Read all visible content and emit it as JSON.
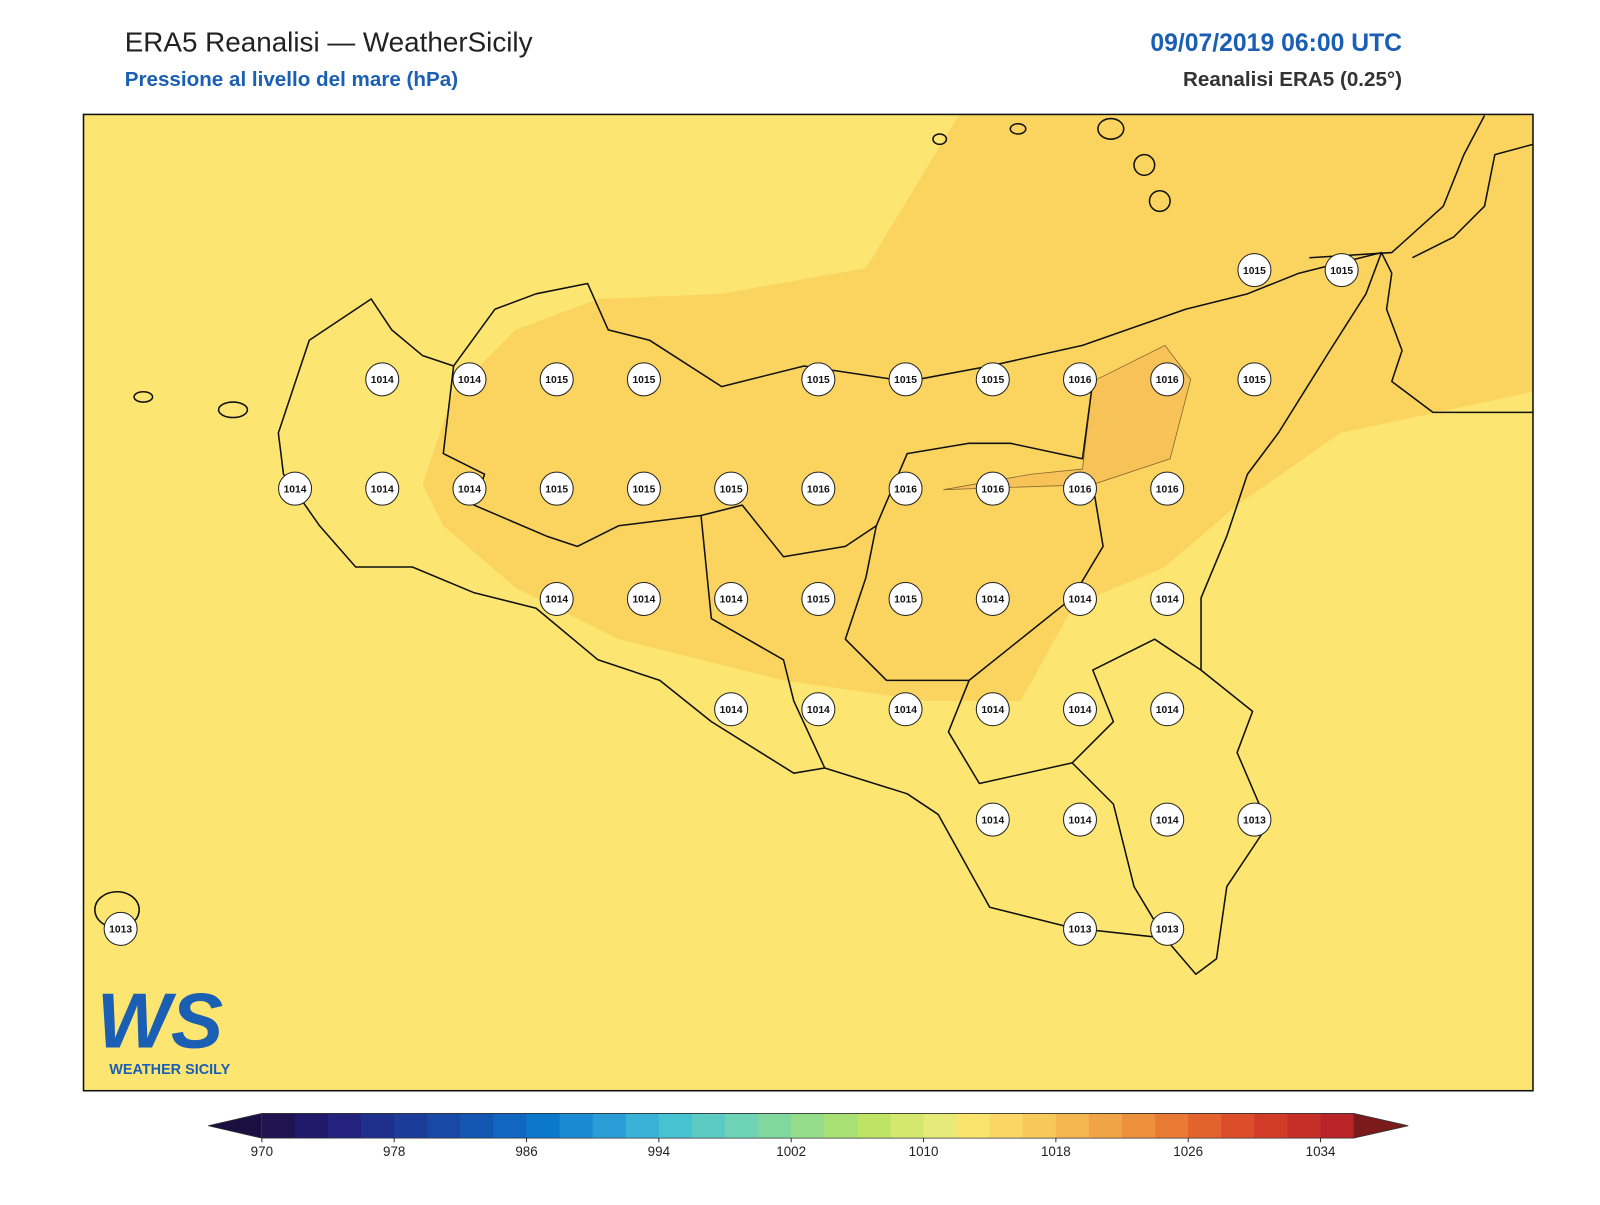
{
  "header": {
    "title": "ERA5 Reanalisi — WeatherSicily",
    "subtitle": "Pressione al livello del mare (hPa)",
    "date": "09/07/2019 06:00 UTC",
    "source": "Reanalisi ERA5 (0.25°)"
  },
  "map": {
    "background": "#fce570",
    "band_color": "#fad45f",
    "core_color": "#f7c257",
    "coast_color": "#111111"
  },
  "stations": [
    1015,
    1015,
    1014,
    1014,
    1015,
    1015,
    1015,
    1015,
    1015,
    1016,
    1016,
    1015,
    1014,
    1014,
    1014,
    1015,
    1015,
    1015,
    1016,
    1016,
    1016,
    1016,
    1016,
    1014,
    1014,
    1014,
    1015,
    1015,
    1014,
    1014,
    1014,
    1014,
    1014,
    1014,
    1014,
    1014,
    1014,
    1014,
    1014,
    1014,
    1013,
    1013,
    1013,
    1013
  ],
  "colorbar": {
    "lim": [
      970,
      1036
    ],
    "ticks": [
      970,
      978,
      986,
      994,
      1002,
      1010,
      1018,
      1026,
      1034
    ],
    "colors": [
      "#1f1450",
      "#211a6b",
      "#23237e",
      "#1f2f8c",
      "#1b3d99",
      "#1849a6",
      "#1457b3",
      "#1066c0",
      "#0c78cc",
      "#1a8ad2",
      "#2a9cd6",
      "#38b2d6",
      "#46c3d0",
      "#5ccbc4",
      "#6dd3b4",
      "#80d89f",
      "#95dc8a",
      "#a9e074",
      "#bfe465",
      "#d3e86c",
      "#e5ea78",
      "#fbe46e",
      "#fad764",
      "#f7c85a",
      "#f4b64f",
      "#f0a445",
      "#ec903c",
      "#e87a34",
      "#e3632e",
      "#dc4d2a",
      "#d23b28",
      "#c62e28",
      "#b82427"
    ],
    "under_color": "#1a0f40",
    "over_color": "#7a1a1a"
  },
  "logo": {
    "mark": "WS",
    "name": "WEATHER SICILY"
  }
}
